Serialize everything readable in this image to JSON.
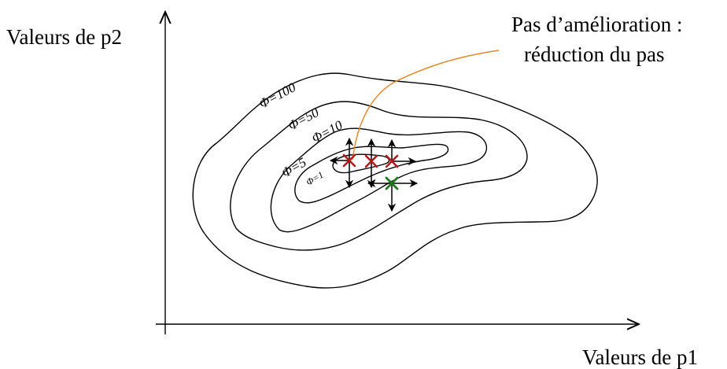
{
  "axes": {
    "x_label": "Valeurs de p1",
    "y_label": "Valeurs de p2"
  },
  "annotation": {
    "line1": "Pas d’amélioration :",
    "line2": "réduction du pas"
  },
  "contours": [
    {
      "label": "Φ=100"
    },
    {
      "label": "Φ=50"
    },
    {
      "label": "Φ=10"
    },
    {
      "label": "Φ=5"
    },
    {
      "label": "Φ=1"
    }
  ],
  "colors": {
    "axis": "#000000",
    "contour": "#000000",
    "annotation_line": "#e08a2e",
    "failed_point": "#b01c1c",
    "current_point": "#1d7a1d"
  }
}
